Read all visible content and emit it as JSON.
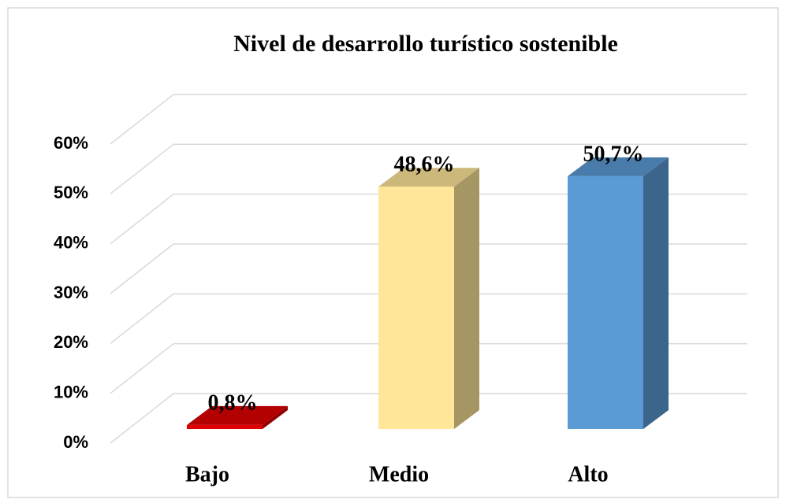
{
  "chart_data": {
    "type": "bar3d",
    "title": "Nivel de desarrollo turístico sostenible",
    "categories": [
      "Bajo",
      "Medio",
      "Alto"
    ],
    "values": [
      0.8,
      48.6,
      50.7
    ],
    "value_labels": [
      "0,8%",
      "48,6%",
      "50,7%"
    ],
    "colors": [
      "#e00000",
      "#ffe699",
      "#5b9bd5"
    ],
    "ylim": [
      0,
      60
    ],
    "yticks": [
      {
        "value": 0,
        "label": "0%"
      },
      {
        "value": 10,
        "label": "10%"
      },
      {
        "value": 20,
        "label": "20%"
      },
      {
        "value": 30,
        "label": "30%"
      },
      {
        "value": 40,
        "label": "40%"
      },
      {
        "value": 50,
        "label": "50%"
      },
      {
        "value": 60,
        "label": "60%"
      }
    ],
    "grid": true
  }
}
